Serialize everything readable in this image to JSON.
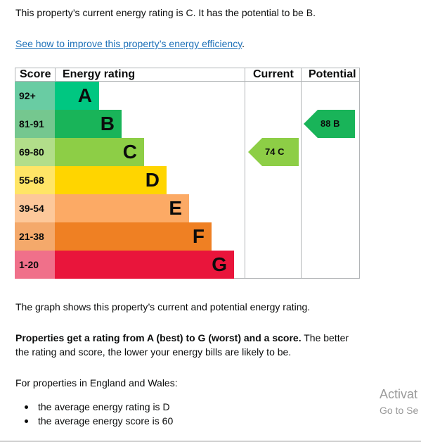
{
  "intro": "This property’s current energy rating is C. It has the potential to be B.",
  "improve_link": "See how to improve this property’s energy efficiency",
  "improve_link_suffix": ".",
  "table": {
    "headers": {
      "score": "Score",
      "rating": "Energy rating",
      "current": "Current",
      "potential": "Potential"
    },
    "bands": [
      {
        "score": "92+",
        "letter": "A",
        "color": "#00c781",
        "score_color": "#69cca3"
      },
      {
        "score": "81-91",
        "letter": "B",
        "color": "#19b459",
        "score_color": "#75c78f"
      },
      {
        "score": "69-80",
        "letter": "C",
        "color": "#8dce46",
        "score_color": "#b2de8a"
      },
      {
        "score": "55-68",
        "letter": "D",
        "color": "#ffd500",
        "score_color": "#ffe566"
      },
      {
        "score": "39-54",
        "letter": "E",
        "color": "#fcaa65",
        "score_color": "#fdc89a"
      },
      {
        "score": "21-38",
        "letter": "F",
        "color": "#ef8023",
        "score_color": "#f4a96b"
      },
      {
        "score": "1-20",
        "letter": "G",
        "color": "#e9153b",
        "score_color": "#f0708a"
      }
    ],
    "current": {
      "value": "74",
      "letter": "C",
      "band": 2,
      "color": "#8dce46",
      "label": "74 C"
    },
    "potential": {
      "value": "88",
      "letter": "B",
      "band": 1,
      "color": "#19b459",
      "label": "88 B"
    }
  },
  "graph_note": "The graph shows this property’s current and potential energy rating.",
  "rating_bold": "Properties get a rating from A (best) to G (worst) and a score.",
  "rating_rest_1": " The better",
  "rating_rest_2": "the rating and score, the lower your energy bills are likely to be.",
  "england_wales": "For properties in England and Wales:",
  "averages": [
    "the average energy rating is D",
    "the average energy score is 60"
  ],
  "watermark": {
    "line1": "Activat",
    "line2": "Go to Se"
  }
}
